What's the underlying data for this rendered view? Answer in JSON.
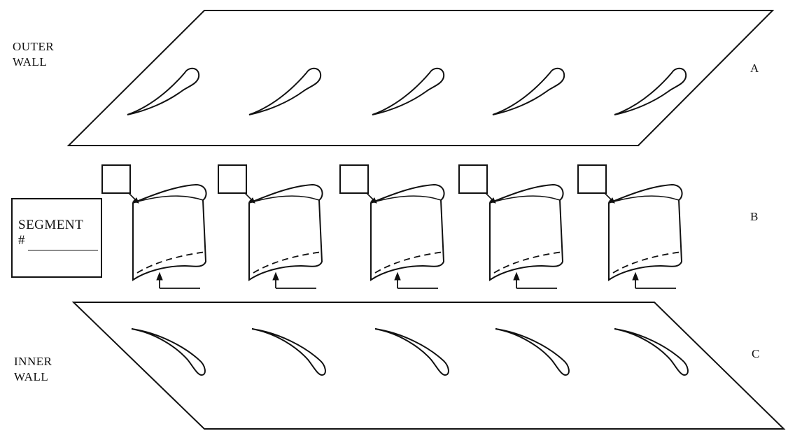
{
  "labels": {
    "outer_wall": [
      "OUTER",
      "WALL"
    ],
    "inner_wall": [
      "INNER",
      "WALL"
    ],
    "part_a": "A",
    "part_b": "B",
    "part_c": "C"
  },
  "segment": {
    "title": "SEGMENT",
    "number_prefix": "#",
    "number_value": ""
  },
  "vanes": [
    {
      "tag": ""
    },
    {
      "tag": ""
    },
    {
      "tag": ""
    },
    {
      "tag": ""
    },
    {
      "tag": ""
    }
  ],
  "colors": {
    "stroke": "#111111",
    "background": "#ffffff"
  }
}
